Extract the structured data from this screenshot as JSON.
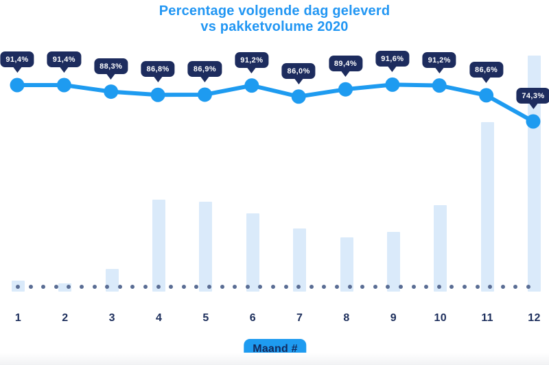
{
  "title": {
    "line1": "Percentage volgende dag geleverd",
    "line2": "vs pakketvolume 2020"
  },
  "x_axis": {
    "tick_labels": [
      "1",
      "2",
      "3",
      "4",
      "5",
      "6",
      "7",
      "8",
      "9",
      "10",
      "11",
      "12"
    ],
    "badge_label": "Maand #"
  },
  "chart_data": {
    "type": "line",
    "title": "Percentage volgende dag geleverd vs pakketvolume 2020",
    "xlabel": "Maand #",
    "ylabel": "",
    "categories": [
      1,
      2,
      3,
      4,
      5,
      6,
      7,
      8,
      9,
      10,
      11,
      12
    ],
    "legend_position": "none",
    "grid": false,
    "baseline_style": "dotted",
    "series": [
      {
        "name": "Percentage volgende dag geleverd",
        "type": "line",
        "unit": "%",
        "values": [
          91.4,
          91.4,
          88.3,
          86.8,
          86.9,
          91.2,
          86.0,
          89.4,
          91.6,
          91.2,
          86.6,
          74.3
        ],
        "point_labels": [
          "91,4%",
          "91,4%",
          "88,3%",
          "86,8%",
          "86,9%",
          "91,2%",
          "86,0%",
          "89,4%",
          "91,6%",
          "91,2%",
          "86,6%",
          "74,3%"
        ]
      },
      {
        "name": "Pakketvolume 2020",
        "type": "bar",
        "unit": "relative volume (no axis shown, % of max)",
        "values": [
          4.7,
          3.5,
          9.6,
          39,
          38,
          33,
          26.7,
          23,
          25.3,
          36.6,
          71.8,
          100
        ]
      }
    ]
  },
  "colors": {
    "title_blue": "#2196f3",
    "line_blue": "#1e9bf0",
    "bar_fill": "#daeafa",
    "tooltip_bg": "#1d2c5e",
    "tooltip_text": "#ffffff",
    "axis_navy": "#1b2d5b",
    "baseline_dot": "#5a6d94",
    "badge_bg": "#1e9bf0",
    "badge_text": "#13295c"
  }
}
